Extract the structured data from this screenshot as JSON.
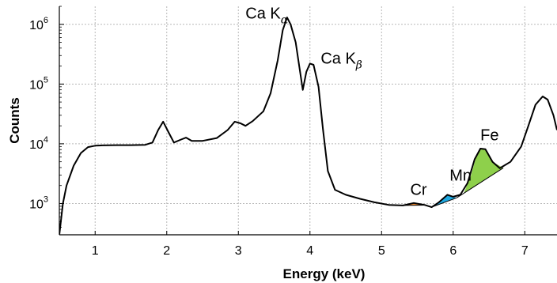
{
  "chart_data": {
    "type": "line",
    "title": "",
    "xlabel": "Energy (keV)",
    "ylabel": "Counts",
    "x_range": [
      0.5,
      7.45
    ],
    "y_log": true,
    "y_range": [
      300,
      2000000
    ],
    "grid": true,
    "x_ticks": [
      {
        "value": 1,
        "label": "1"
      },
      {
        "value": 2,
        "label": "2"
      },
      {
        "value": 3,
        "label": "3"
      },
      {
        "value": 4,
        "label": "4"
      },
      {
        "value": 5,
        "label": "5"
      },
      {
        "value": 6,
        "label": "6"
      },
      {
        "value": 7,
        "label": "7"
      }
    ],
    "y_ticks": [
      {
        "value": 1000,
        "base": "10",
        "exp": "3"
      },
      {
        "value": 10000,
        "base": "10",
        "exp": "4"
      },
      {
        "value": 100000,
        "base": "10",
        "exp": "5"
      },
      {
        "value": 1000000,
        "base": "10",
        "exp": "6"
      }
    ],
    "series": [
      {
        "color": "#000000",
        "points": [
          [
            0.5,
            300
          ],
          [
            0.55,
            1000
          ],
          [
            0.6,
            2000
          ],
          [
            0.7,
            4300
          ],
          [
            0.8,
            7000
          ],
          [
            0.9,
            8800
          ],
          [
            1.0,
            9300
          ],
          [
            1.1,
            9400
          ],
          [
            1.3,
            9500
          ],
          [
            1.5,
            9500
          ],
          [
            1.7,
            9600
          ],
          [
            1.8,
            10500
          ],
          [
            1.88,
            17000
          ],
          [
            1.95,
            23500
          ],
          [
            2.02,
            16000
          ],
          [
            2.1,
            10500
          ],
          [
            2.2,
            11800
          ],
          [
            2.27,
            12700
          ],
          [
            2.35,
            11200
          ],
          [
            2.5,
            11200
          ],
          [
            2.7,
            12500
          ],
          [
            2.85,
            17000
          ],
          [
            2.95,
            23500
          ],
          [
            3.03,
            22000
          ],
          [
            3.1,
            20000
          ],
          [
            3.2,
            24000
          ],
          [
            3.35,
            35000
          ],
          [
            3.45,
            70000
          ],
          [
            3.55,
            250000
          ],
          [
            3.62,
            800000
          ],
          [
            3.68,
            1300000
          ],
          [
            3.73,
            1000000
          ],
          [
            3.8,
            500000
          ],
          [
            3.85,
            200000
          ],
          [
            3.9,
            80000
          ],
          [
            3.95,
            160000
          ],
          [
            4.0,
            220000
          ],
          [
            4.05,
            210000
          ],
          [
            4.12,
            90000
          ],
          [
            4.18,
            18000
          ],
          [
            4.25,
            3500
          ],
          [
            4.35,
            1700
          ],
          [
            4.5,
            1400
          ],
          [
            4.7,
            1200
          ],
          [
            4.9,
            1050
          ],
          [
            5.1,
            950
          ],
          [
            5.3,
            930
          ],
          [
            5.45,
            1020
          ],
          [
            5.6,
            950
          ],
          [
            5.7,
            870
          ],
          [
            5.8,
            1050
          ],
          [
            5.92,
            1400
          ],
          [
            6.0,
            1300
          ],
          [
            6.1,
            1400
          ],
          [
            6.2,
            2200
          ],
          [
            6.3,
            5500
          ],
          [
            6.38,
            8300
          ],
          [
            6.45,
            8100
          ],
          [
            6.55,
            5000
          ],
          [
            6.65,
            3900
          ],
          [
            6.8,
            5000
          ],
          [
            6.95,
            9000
          ],
          [
            7.05,
            20000
          ],
          [
            7.15,
            45000
          ],
          [
            7.25,
            62000
          ],
          [
            7.32,
            55000
          ],
          [
            7.4,
            30000
          ],
          [
            7.45,
            17000
          ]
        ]
      }
    ],
    "filled_regions": [
      {
        "name": "Cr",
        "color": "#f0892e",
        "points": [
          [
            5.25,
            930
          ],
          [
            5.35,
            970
          ],
          [
            5.45,
            1020
          ],
          [
            5.55,
            990
          ],
          [
            5.62,
            940
          ]
        ]
      },
      {
        "name": "Mn",
        "color": "#1fa8e0",
        "points": [
          [
            5.7,
            870
          ],
          [
            5.8,
            1050
          ],
          [
            5.88,
            1300
          ],
          [
            5.93,
            1400
          ],
          [
            6.0,
            1300
          ],
          [
            6.05,
            1250
          ]
        ]
      },
      {
        "name": "Fe",
        "color": "#8ed04b",
        "points": [
          [
            6.05,
            1250
          ],
          [
            6.15,
            1500
          ],
          [
            6.25,
            3000
          ],
          [
            6.32,
            6000
          ],
          [
            6.38,
            8300
          ],
          [
            6.45,
            8100
          ],
          [
            6.55,
            5000
          ],
          [
            6.7,
            3950
          ]
        ]
      }
    ],
    "annotations": [
      {
        "name": "ca-k-alpha",
        "text": "Ca K",
        "sub": "α",
        "x": 3.1,
        "y": 1250000
      },
      {
        "name": "ca-k-beta",
        "text": "Ca K",
        "sub": "β",
        "x": 4.15,
        "y": 220000
      },
      {
        "name": "cr",
        "text": "Cr",
        "x": 5.4,
        "y": 1400
      },
      {
        "name": "mn",
        "text": "Mn",
        "x": 5.95,
        "y": 2400
      },
      {
        "name": "fe",
        "text": "Fe",
        "x": 6.38,
        "y": 11500
      }
    ]
  }
}
